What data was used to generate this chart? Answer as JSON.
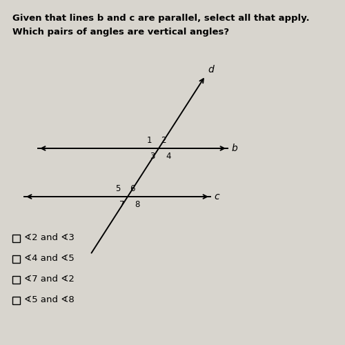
{
  "title_line1": "Given that lines b and c are parallel, select all that apply.",
  "title_line2": "Which pairs of angles are vertical angles?",
  "bg_color": "#d8d5ce",
  "text_color": "#000000",
  "options": [
    "∢2 and ∢3",
    "∢4 and ∢5",
    "∢7 and ∢2",
    "∢5 and ∢8"
  ],
  "fig_width": 5.0,
  "fig_height": 5.0,
  "dpi": 100
}
